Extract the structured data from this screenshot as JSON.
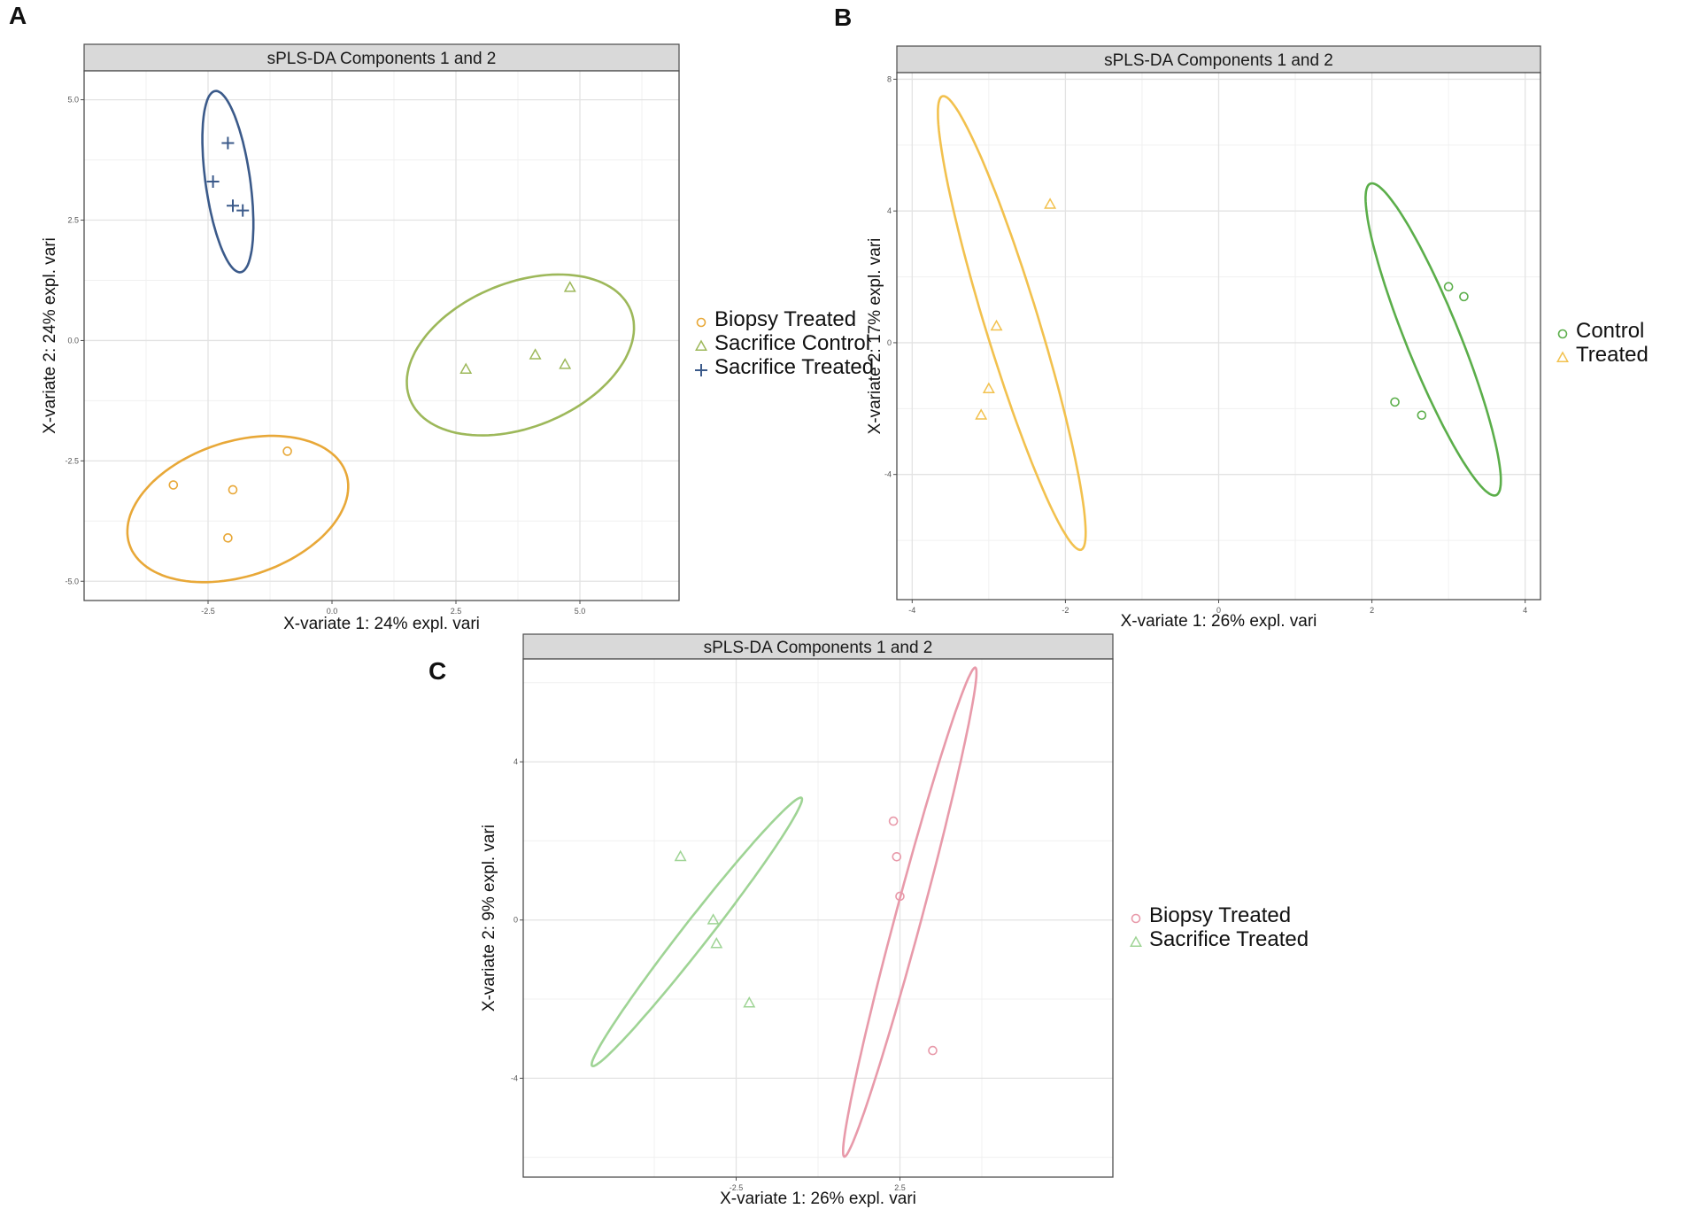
{
  "panels": {
    "A": {
      "letter": "A"
    },
    "B": {
      "letter": "B"
    },
    "C": {
      "letter": "C"
    }
  },
  "chart_data": [
    {
      "id": "A",
      "type": "scatter",
      "title": "sPLS-DA Components 1 and 2",
      "xlabel": "X-variate 1: 24% expl. vari",
      "ylabel": "X-variate 2: 24% expl. vari",
      "xlim": [
        -5,
        7
      ],
      "ylim": [
        -5.4,
        5.6
      ],
      "xticks": [
        -2.5,
        0.0,
        2.5,
        5.0
      ],
      "xtick_labels": [
        "-2.5",
        "0.0",
        "2.5",
        "5.0"
      ],
      "yticks": [
        -5.0,
        -2.5,
        0.0,
        2.5,
        5.0
      ],
      "ytick_labels": [
        "-5.0",
        "-2.5",
        "0.0",
        "2.5",
        "5.0"
      ],
      "grid": true,
      "legend": "right",
      "series": [
        {
          "name": "Biopsy Treated",
          "marker": "circle",
          "color": "#E8A838",
          "x": [
            -3.2,
            -2.0,
            -2.1,
            -0.9
          ],
          "y": [
            -3.0,
            -3.1,
            -4.1,
            -2.3
          ],
          "ellipse": {
            "cx": -1.9,
            "cy": -3.5,
            "rx": 2.3,
            "ry": 1.4,
            "angle": 18
          }
        },
        {
          "name": "Sacrifice Control",
          "marker": "triangle",
          "color": "#9DB85A",
          "x": [
            2.7,
            4.1,
            4.7,
            4.8
          ],
          "y": [
            -0.6,
            -0.3,
            -0.5,
            1.1
          ],
          "ellipse": {
            "cx": 3.8,
            "cy": -0.3,
            "rx": 2.4,
            "ry": 1.5,
            "angle": 22
          }
        },
        {
          "name": "Sacrifice Treated",
          "marker": "plus",
          "color": "#3B5A8A",
          "x": [
            -2.1,
            -2.4,
            -2.0,
            -1.8
          ],
          "y": [
            4.1,
            3.3,
            2.8,
            2.7
          ],
          "ellipse": {
            "cx": -2.1,
            "cy": 3.3,
            "rx": 0.45,
            "ry": 1.9,
            "angle": 8
          }
        }
      ]
    },
    {
      "id": "B",
      "type": "scatter",
      "title": "sPLS-DA Components 1 and 2",
      "xlabel": "X-variate 1: 26% expl. vari",
      "ylabel": "X-variate 2: 17% expl. vari",
      "xlim": [
        -4.2,
        4.2
      ],
      "ylim": [
        -7.8,
        8.2
      ],
      "xticks": [
        -4,
        -2,
        0,
        2,
        4
      ],
      "xtick_labels": [
        "-4",
        "-2",
        "0",
        "2",
        "4"
      ],
      "yticks": [
        -4,
        0,
        4,
        8
      ],
      "ytick_labels": [
        "-4",
        "0",
        "4",
        "8"
      ],
      "grid": true,
      "legend": "right",
      "series": [
        {
          "name": "Control",
          "marker": "circle",
          "color": "#5BAE4A",
          "x": [
            3.0,
            3.2,
            2.3,
            2.65
          ],
          "y": [
            1.7,
            1.4,
            -1.8,
            -2.2
          ],
          "ellipse": {
            "cx": 2.8,
            "cy": 0.1,
            "rx": 0.35,
            "ry": 5.1,
            "angle": 22
          }
        },
        {
          "name": "Treated",
          "marker": "triangle",
          "color": "#F2C14E",
          "x": [
            -2.2,
            -2.9,
            -3.0,
            -3.1
          ],
          "y": [
            4.2,
            0.5,
            -1.4,
            -2.2
          ],
          "ellipse": {
            "cx": -2.7,
            "cy": 0.6,
            "rx": 0.35,
            "ry": 7.2,
            "angle": 17
          }
        }
      ]
    },
    {
      "id": "C",
      "type": "scatter",
      "title": "sPLS-DA Components 1 and 2",
      "xlabel": "X-variate 1: 26% expl. vari",
      "ylabel": "X-variate 2: 9% expl. vari",
      "xlim": [
        -9,
        9
      ],
      "ylim": [
        -6.5,
        6.6
      ],
      "xticks": [
        -2.5,
        2.5
      ],
      "xtick_labels": [
        "-2.5",
        "2.5"
      ],
      "yticks": [
        -4,
        0,
        4
      ],
      "ytick_labels": [
        "-4",
        "0",
        "4"
      ],
      "grid": true,
      "legend": "right",
      "series": [
        {
          "name": "Biopsy Treated",
          "marker": "circle",
          "color": "#E89AAA",
          "x": [
            2.3,
            2.4,
            2.5,
            3.5
          ],
          "y": [
            2.5,
            1.6,
            0.6,
            -3.3
          ],
          "ellipse": {
            "cx": 2.8,
            "cy": 0.2,
            "rx": 0.4,
            "ry": 6.4,
            "angle": -15
          }
        },
        {
          "name": "Sacrifice Treated",
          "marker": "triangle",
          "color": "#9FD495",
          "x": [
            -4.2,
            -3.2,
            -3.1,
            -2.1
          ],
          "y": [
            1.6,
            0.0,
            -0.6,
            -2.1
          ],
          "ellipse": {
            "cx": -3.7,
            "cy": -0.3,
            "rx": 0.4,
            "ry": 4.3,
            "angle": -38
          }
        }
      ]
    }
  ]
}
